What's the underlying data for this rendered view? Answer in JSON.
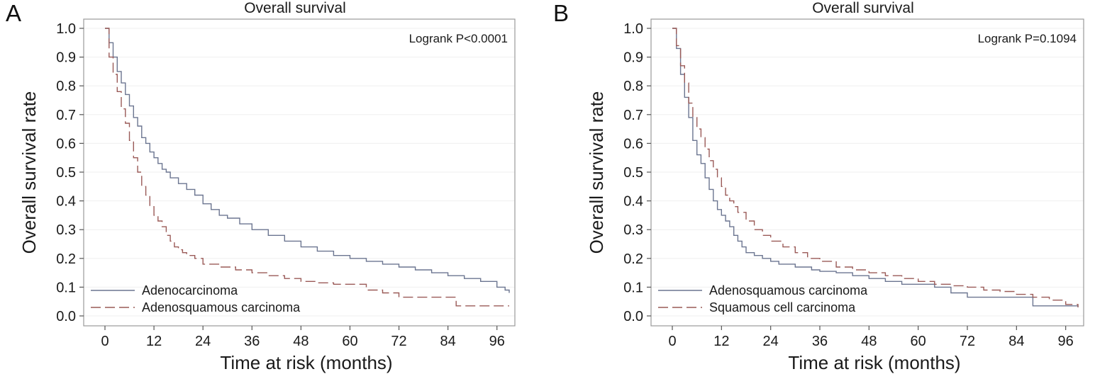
{
  "chart_data": [
    {
      "type": "line",
      "panel_label": "A",
      "title": "Overall survival",
      "xlabel": "Time at risk (months)",
      "ylabel": "Overall survival rate",
      "xlim": [
        0,
        99
      ],
      "ylim": [
        0.0,
        1.0
      ],
      "xticks": [
        "0",
        "12",
        "24",
        "36",
        "48",
        "60",
        "72",
        "84",
        "96"
      ],
      "xtick_values": [
        0,
        12,
        24,
        36,
        48,
        60,
        72,
        84,
        96
      ],
      "yticks": [
        "0.0",
        "0.1",
        "0.2",
        "0.3",
        "0.4",
        "0.5",
        "0.6",
        "0.7",
        "0.8",
        "0.9",
        "1.0"
      ],
      "ytick_values": [
        0,
        0.1,
        0.2,
        0.3,
        0.4,
        0.5,
        0.6,
        0.7,
        0.8,
        0.9,
        1.0
      ],
      "annotation": "Logrank P<0.0001",
      "legend_position": "bottom-left",
      "grid": true,
      "series": [
        {
          "name": "Adenocarcinoma",
          "style": "solid",
          "color": "#6b7590",
          "x": [
            0,
            1,
            2,
            3,
            4,
            5,
            6,
            7,
            8,
            9,
            10,
            11,
            12,
            13,
            14,
            15,
            16,
            18,
            20,
            22,
            24,
            26,
            28,
            30,
            33,
            36,
            40,
            44,
            48,
            52,
            56,
            60,
            64,
            68,
            72,
            76,
            80,
            84,
            88,
            92,
            96,
            98,
            99
          ],
          "y": [
            1.0,
            0.95,
            0.9,
            0.85,
            0.81,
            0.77,
            0.73,
            0.69,
            0.66,
            0.62,
            0.6,
            0.57,
            0.55,
            0.53,
            0.51,
            0.5,
            0.48,
            0.46,
            0.44,
            0.42,
            0.39,
            0.37,
            0.35,
            0.34,
            0.32,
            0.3,
            0.28,
            0.26,
            0.24,
            0.225,
            0.21,
            0.2,
            0.19,
            0.18,
            0.17,
            0.16,
            0.15,
            0.14,
            0.13,
            0.12,
            0.1,
            0.09,
            0.08
          ]
        },
        {
          "name": "Adenosquamous carcinoma",
          "style": "dashed",
          "color": "#9a5a57",
          "x": [
            0,
            1,
            2,
            3,
            4,
            5,
            6,
            7,
            8,
            9,
            10,
            11,
            12,
            13,
            14,
            15,
            16,
            17,
            18,
            19,
            20,
            22,
            24,
            28,
            32,
            36,
            40,
            44,
            48,
            52,
            56,
            60,
            64,
            68,
            72,
            84,
            86,
            96,
            99
          ],
          "y": [
            1.0,
            0.9,
            0.84,
            0.78,
            0.72,
            0.67,
            0.61,
            0.55,
            0.5,
            0.45,
            0.42,
            0.38,
            0.35,
            0.33,
            0.31,
            0.28,
            0.26,
            0.24,
            0.23,
            0.22,
            0.21,
            0.2,
            0.18,
            0.17,
            0.16,
            0.15,
            0.14,
            0.13,
            0.12,
            0.115,
            0.11,
            0.11,
            0.09,
            0.08,
            0.065,
            0.065,
            0.035,
            0.035,
            0.035
          ]
        }
      ]
    },
    {
      "type": "line",
      "panel_label": "B",
      "title": "Overall survival",
      "xlabel": "Time at risk (months)",
      "ylabel": "Overall survival rate",
      "xlim": [
        0,
        99
      ],
      "ylim": [
        0.0,
        1.0
      ],
      "xticks": [
        "0",
        "12",
        "24",
        "36",
        "48",
        "60",
        "72",
        "84",
        "96"
      ],
      "xtick_values": [
        0,
        12,
        24,
        36,
        48,
        60,
        72,
        84,
        96
      ],
      "yticks": [
        "0.0",
        "0.1",
        "0.2",
        "0.3",
        "0.4",
        "0.5",
        "0.6",
        "0.7",
        "0.8",
        "0.9",
        "1.0"
      ],
      "ytick_values": [
        0,
        0.1,
        0.2,
        0.3,
        0.4,
        0.5,
        0.6,
        0.7,
        0.8,
        0.9,
        1.0
      ],
      "annotation": "Logrank P=0.1094",
      "legend_position": "bottom-left",
      "grid": true,
      "series": [
        {
          "name": "Adenosquamous carcinoma",
          "style": "solid",
          "color": "#6b7590",
          "x": [
            0,
            1,
            2,
            3,
            4,
            5,
            6,
            7,
            8,
            9,
            10,
            11,
            12,
            13,
            14,
            15,
            16,
            17,
            18,
            20,
            22,
            24,
            26,
            30,
            34,
            36,
            40,
            44,
            48,
            52,
            56,
            60,
            64,
            68,
            72,
            84,
            88,
            96,
            99
          ],
          "y": [
            1.0,
            0.93,
            0.84,
            0.76,
            0.69,
            0.61,
            0.56,
            0.53,
            0.48,
            0.44,
            0.4,
            0.37,
            0.35,
            0.33,
            0.31,
            0.28,
            0.26,
            0.24,
            0.22,
            0.21,
            0.2,
            0.19,
            0.18,
            0.17,
            0.16,
            0.155,
            0.15,
            0.14,
            0.13,
            0.12,
            0.11,
            0.11,
            0.1,
            0.08,
            0.065,
            0.065,
            0.035,
            0.035,
            0.03
          ]
        },
        {
          "name": "Squamous cell carcinoma",
          "style": "dashed",
          "color": "#9a5a57",
          "x": [
            0,
            1,
            2,
            3,
            4,
            5,
            6,
            7,
            8,
            9,
            10,
            11,
            12,
            13,
            14,
            15,
            16,
            18,
            20,
            22,
            24,
            27,
            30,
            33,
            36,
            40,
            44,
            48,
            52,
            56,
            60,
            64,
            68,
            72,
            76,
            80,
            84,
            88,
            92,
            96,
            99
          ],
          "y": [
            1.0,
            0.94,
            0.87,
            0.81,
            0.74,
            0.69,
            0.65,
            0.62,
            0.58,
            0.54,
            0.51,
            0.48,
            0.45,
            0.42,
            0.4,
            0.38,
            0.36,
            0.33,
            0.3,
            0.28,
            0.26,
            0.24,
            0.22,
            0.2,
            0.19,
            0.17,
            0.16,
            0.15,
            0.14,
            0.13,
            0.12,
            0.11,
            0.105,
            0.1,
            0.09,
            0.085,
            0.075,
            0.065,
            0.055,
            0.04,
            0.03
          ]
        }
      ]
    }
  ]
}
